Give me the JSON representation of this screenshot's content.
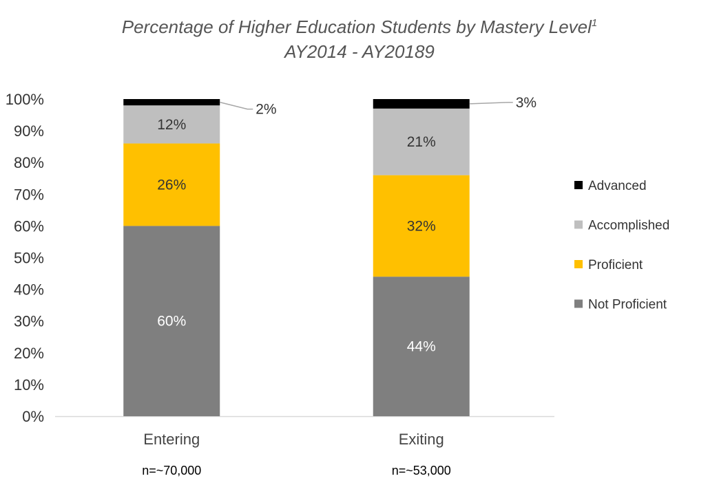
{
  "chart_data": {
    "type": "bar",
    "stacked": true,
    "title": "Percentage of Higher Education Students by Mastery Level",
    "title_superscript": "1",
    "subtitle": "AY2014 - AY20189",
    "categories": [
      "Entering",
      "Exiting"
    ],
    "category_notes": [
      "n=~70,000",
      "n=~53,000"
    ],
    "ylim": [
      0,
      100
    ],
    "y_ticks": [
      "0%",
      "10%",
      "20%",
      "30%",
      "40%",
      "50%",
      "60%",
      "70%",
      "80%",
      "90%",
      "100%"
    ],
    "grid": false,
    "legend_position": "right",
    "series": [
      {
        "name": "Not Proficient",
        "color": "#7f7f7f",
        "label_color": "#ffffff",
        "values": [
          60,
          44
        ],
        "labels": [
          "60%",
          "44%"
        ]
      },
      {
        "name": "Proficient",
        "color": "#ffc000",
        "label_color": "#333333",
        "values": [
          26,
          32
        ],
        "labels": [
          "26%",
          "32%"
        ]
      },
      {
        "name": "Accomplished",
        "color": "#bfbfbf",
        "label_color": "#333333",
        "values": [
          12,
          21
        ],
        "labels": [
          "12%",
          "21%"
        ]
      },
      {
        "name": "Advanced",
        "color": "#000000",
        "label_color": "#333333",
        "values": [
          2,
          3
        ],
        "labels": [
          "2%",
          "3%"
        ]
      }
    ]
  }
}
